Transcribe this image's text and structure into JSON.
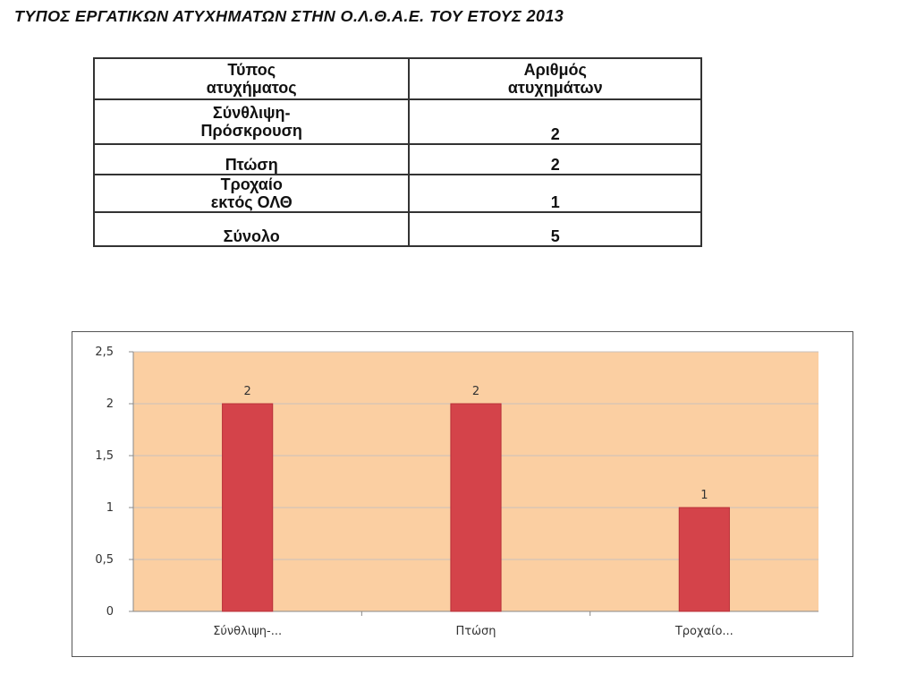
{
  "title": "ΤΥΠΟΣ ΕΡΓΑΤΙΚΩΝ ΑΤΥΧΗΜΑΤΩΝ ΣΤΗΝ Ο.Λ.Θ.Α.Ε. ΤΟΥ ΕΤΟΥΣ 2013",
  "table": {
    "headers": [
      [
        "Τύπος",
        "ατυχήματος"
      ],
      [
        "Αριθμός",
        "ατυχημάτων"
      ]
    ],
    "rows": [
      {
        "type": [
          "Σύνθλιψη-",
          "Πρόσκρουση"
        ],
        "count": "2"
      },
      {
        "type": [
          "Πτώση"
        ],
        "count": "2"
      },
      {
        "type": [
          "Τροχαίο",
          "εκτός ΟΛΘ"
        ],
        "count": "1"
      },
      {
        "type": [
          "Σύνολο"
        ],
        "count": "5"
      }
    ]
  },
  "colors": {
    "plot_background": "#FBCFA2",
    "bar_fill": "#D4434A",
    "bar_stroke": "#B83038",
    "gridline": "#C8C0BC"
  },
  "chart_data": {
    "type": "bar",
    "categories": [
      "Σύνθλιψη-...",
      "Πτώση",
      "Τροχαίο..."
    ],
    "values": [
      2,
      2,
      1
    ],
    "data_labels": [
      "2",
      "2",
      "1"
    ],
    "y_ticks": [
      "0",
      "0,5",
      "1",
      "1,5",
      "2",
      "2,5"
    ],
    "y_tick_values": [
      0,
      0.5,
      1,
      1.5,
      2,
      2.5
    ],
    "ylim": [
      0,
      2.5
    ],
    "title": "",
    "xlabel": "",
    "ylabel": "",
    "grid": true,
    "legend": "none"
  }
}
